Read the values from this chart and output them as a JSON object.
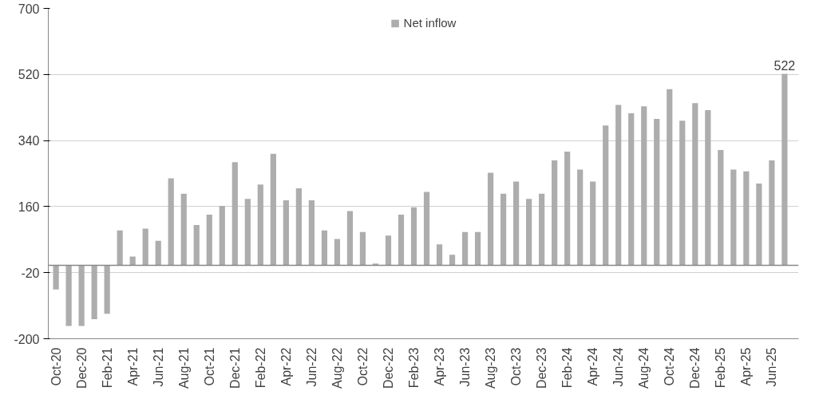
{
  "chart_data": {
    "type": "bar",
    "categories": [
      "Oct-20",
      null,
      "Dec-20",
      null,
      "Feb-21",
      null,
      "Apr-21",
      null,
      "Jun-21",
      null,
      "Aug-21",
      null,
      "Oct-21",
      null,
      "Dec-21",
      null,
      "Feb-22",
      null,
      "Apr-22",
      null,
      "Jun-22",
      null,
      "Aug-22",
      null,
      "Oct-22",
      null,
      "Dec-22",
      null,
      "Feb-23",
      null,
      "Apr-23",
      null,
      "Jun-23",
      null,
      "Aug-23",
      null,
      "Oct-23",
      null,
      "Dec-23",
      null,
      "Feb-24",
      null,
      "Apr-24",
      null,
      "Jun-24",
      null,
      "Aug-24",
      null,
      "Oct-24",
      null,
      "Dec-24",
      null,
      "Feb-25",
      null,
      "Apr-25",
      null,
      "Jun-25",
      null
    ],
    "series": [
      {
        "name": "Net inflow",
        "color": "#adadad",
        "values": [
          -66,
          -165,
          -165,
          -147,
          -132,
          95,
          24,
          100,
          67,
          237,
          195,
          110,
          138,
          162,
          281,
          181,
          220,
          304,
          177,
          210,
          177,
          95,
          72,
          148,
          91,
          5,
          81,
          138,
          158,
          200,
          57,
          29,
          91,
          91,
          252,
          195,
          228,
          181,
          195,
          286,
          310,
          261,
          228,
          381,
          437,
          414,
          433,
          399,
          480,
          394,
          442,
          423,
          314,
          261,
          256,
          223,
          286,
          522
        ],
        "value_labels": [
          null,
          null,
          null,
          null,
          null,
          null,
          null,
          null,
          null,
          null,
          null,
          null,
          null,
          null,
          null,
          null,
          null,
          null,
          null,
          null,
          null,
          null,
          null,
          null,
          null,
          null,
          null,
          null,
          null,
          null,
          null,
          null,
          null,
          null,
          null,
          null,
          null,
          null,
          null,
          null,
          null,
          null,
          null,
          null,
          null,
          null,
          null,
          null,
          null,
          null,
          null,
          null,
          null,
          null,
          null,
          null,
          null,
          "522"
        ]
      }
    ],
    "ylim": [
      -200,
      700
    ],
    "yticks": [
      -200,
      -20,
      160,
      340,
      520,
      700
    ],
    "grid": "y",
    "legend": "top"
  }
}
